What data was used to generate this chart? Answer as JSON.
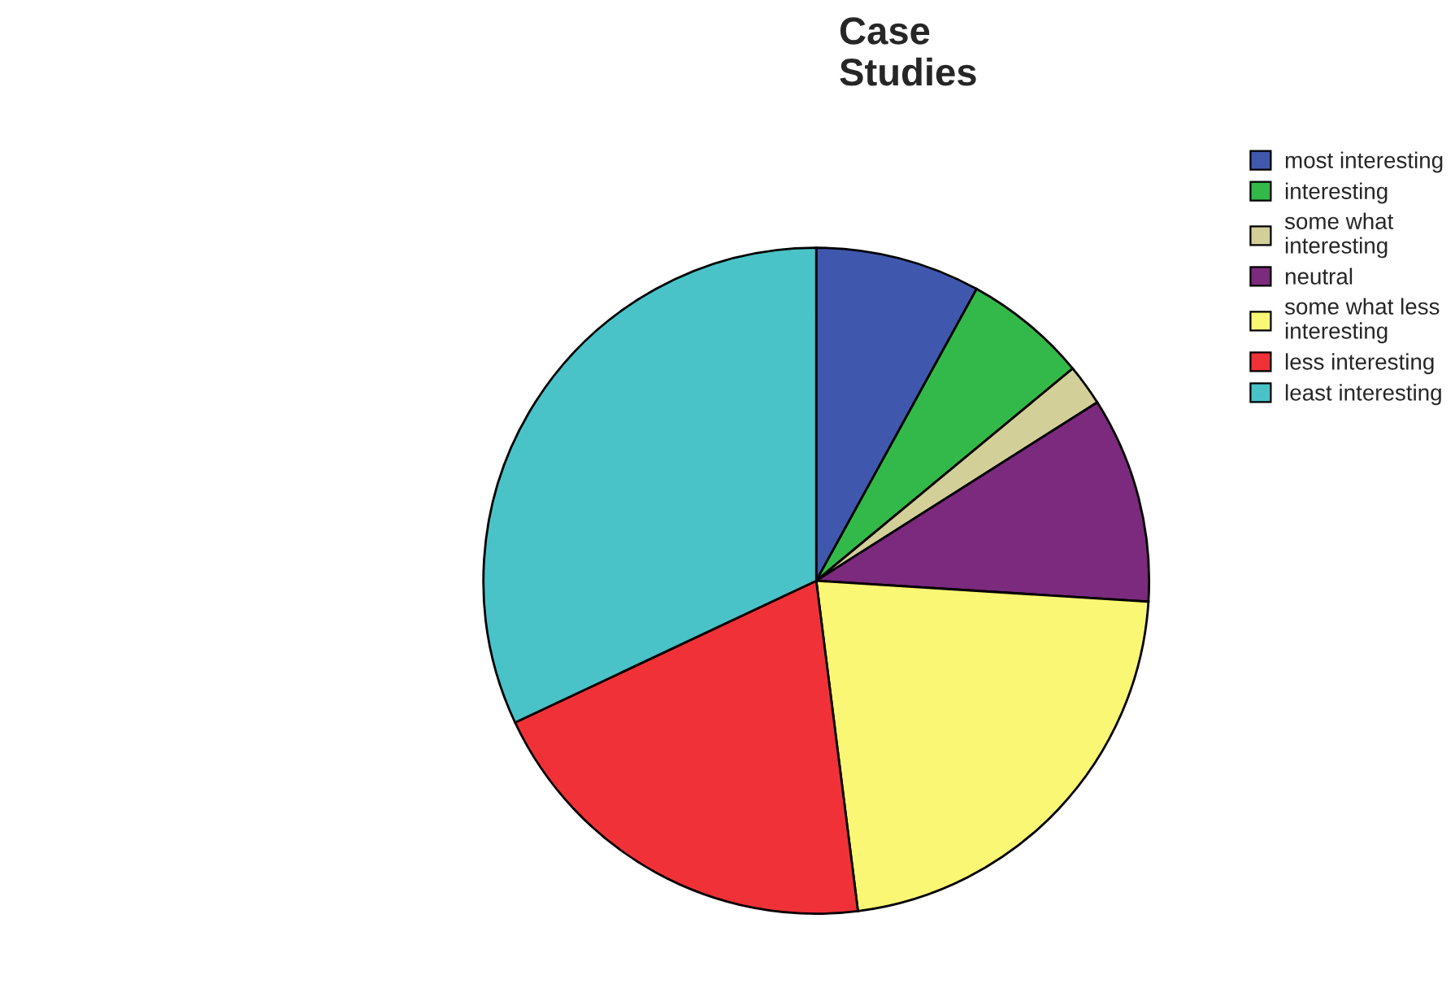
{
  "chart_data": {
    "type": "pie",
    "title": "Case\nStudies",
    "categories": [
      "most interesting",
      "interesting",
      "some what\ninteresting",
      "neutral",
      "some what less\ninteresting",
      "less interesting",
      "least interesting"
    ],
    "values": [
      8,
      6,
      2,
      10,
      22,
      20,
      32
    ],
    "colors": [
      "#3f58ad",
      "#33b94a",
      "#d3cf98",
      "#7b2a7d",
      "#faf774",
      "#f03238",
      "#4ac3c8"
    ],
    "legend": "top right"
  }
}
